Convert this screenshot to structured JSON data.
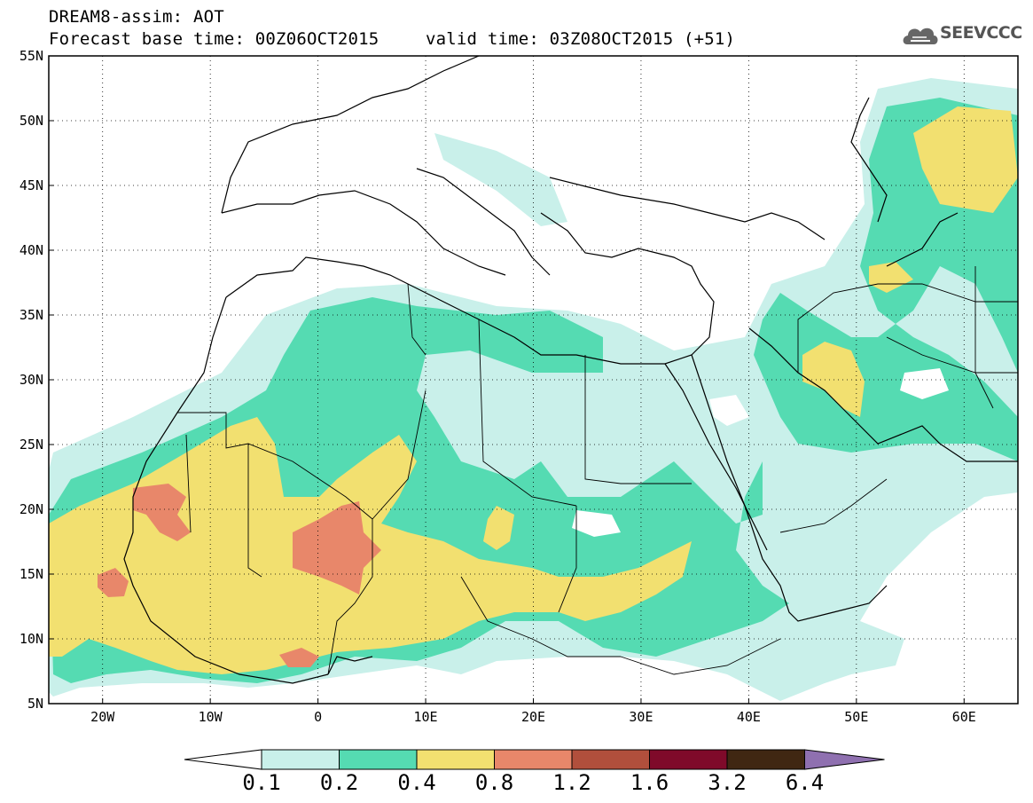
{
  "title": {
    "line1": "DREAM8-assim: AOT",
    "line2": "Forecast base time: 00Z06OCT2015",
    "line2_right": "valid time: 03Z08OCT2015 (+51)"
  },
  "logo": {
    "text": "SEEVCCC",
    "icon": "cloud-icon",
    "color": "#555555"
  },
  "map": {
    "lon_range": [
      -25,
      65
    ],
    "lat_range": [
      5,
      55
    ],
    "lat_labels": [
      "55N",
      "50N",
      "45N",
      "40N",
      "35N",
      "30N",
      "25N",
      "20N",
      "15N",
      "10N",
      "5N"
    ],
    "lon_labels": [
      "20W",
      "10W",
      "0",
      "10E",
      "20E",
      "30E",
      "40E",
      "50E",
      "60E"
    ]
  },
  "colorbar": {
    "colors": [
      "#c9f0ea",
      "#55dbb2",
      "#f2e070",
      "#e8876a",
      "#b14f3c",
      "#7f0a2a",
      "#402712",
      "#8f70b0"
    ],
    "labels": [
      "0.1",
      "0.2",
      "0.4",
      "0.8",
      "1.2",
      "1.6",
      "3.2",
      "6.4"
    ]
  }
}
